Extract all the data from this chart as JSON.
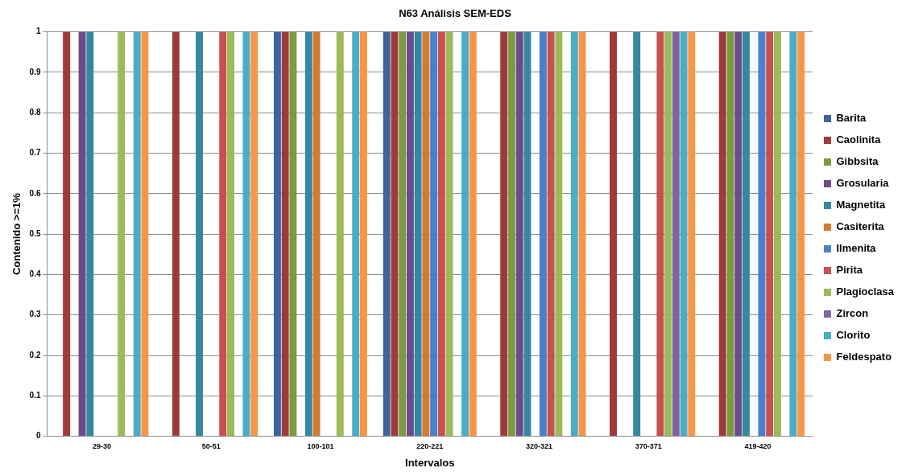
{
  "chart_data": {
    "type": "bar",
    "title": "N63 Análisis SEM-EDS",
    "xlabel": "Intervalos",
    "ylabel": "Contenido >=1%",
    "categories": [
      "29-30",
      "50-51",
      "100-101",
      "220-221",
      "320-321",
      "370-371",
      "419-420"
    ],
    "series": [
      {
        "name": "Barita",
        "color": "#3c65a0",
        "values": [
          0,
          0,
          1,
          1,
          0,
          0,
          0
        ]
      },
      {
        "name": "Caolinita",
        "color": "#9e3b3a",
        "values": [
          1,
          1,
          1,
          1,
          1,
          1,
          1
        ]
      },
      {
        "name": "Gibbsita",
        "color": "#7d9a3f",
        "values": [
          0,
          0,
          1,
          1,
          1,
          0,
          1
        ]
      },
      {
        "name": "Grosularia",
        "color": "#6a4c8c",
        "values": [
          1,
          0,
          0,
          1,
          1,
          0,
          1
        ]
      },
      {
        "name": "Magnetita",
        "color": "#35889f",
        "values": [
          1,
          1,
          1,
          1,
          1,
          1,
          1
        ]
      },
      {
        "name": "Casiterita",
        "color": "#d47a2f",
        "values": [
          0,
          0,
          1,
          1,
          0,
          0,
          0
        ]
      },
      {
        "name": "Ilmenita",
        "color": "#4a7fc9",
        "values": [
          0,
          0,
          0,
          1,
          1,
          0,
          1
        ]
      },
      {
        "name": "Pirita",
        "color": "#c8504d",
        "values": [
          0,
          1,
          0,
          1,
          1,
          1,
          1
        ]
      },
      {
        "name": "Plagioclasa",
        "color": "#9bbb59",
        "values": [
          1,
          1,
          1,
          1,
          1,
          1,
          1
        ]
      },
      {
        "name": "Zircon",
        "color": "#8064a2",
        "values": [
          0,
          0,
          0,
          0,
          0,
          1,
          0
        ]
      },
      {
        "name": "Clorito",
        "color": "#4bacc6",
        "values": [
          1,
          1,
          1,
          1,
          1,
          1,
          1
        ]
      },
      {
        "name": "Feldespato",
        "color": "#f79646",
        "values": [
          1,
          1,
          1,
          1,
          1,
          1,
          1
        ]
      }
    ],
    "ylim": [
      0,
      1
    ],
    "yticks": [
      0,
      0.1,
      0.2,
      0.3,
      0.4,
      0.5,
      0.6,
      0.7,
      0.8,
      0.9,
      1
    ],
    "grid": "y",
    "legend": "right"
  }
}
